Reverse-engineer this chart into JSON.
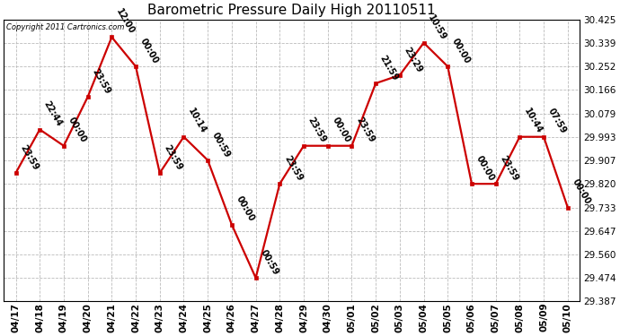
{
  "title": "Barometric Pressure Daily High 20110511",
  "copyright": "Copyright 2011 Cartronics.com",
  "x_labels": [
    "04/17",
    "04/18",
    "04/19",
    "04/20",
    "04/21",
    "04/22",
    "04/23",
    "04/24",
    "04/25",
    "04/26",
    "04/27",
    "04/28",
    "04/29",
    "04/30",
    "05/01",
    "05/02",
    "05/03",
    "05/04",
    "05/05",
    "05/06",
    "05/07",
    "05/08",
    "05/09",
    "05/10"
  ],
  "y_values": [
    29.86,
    30.02,
    29.96,
    30.14,
    30.36,
    30.252,
    29.86,
    29.993,
    29.907,
    29.67,
    29.474,
    29.82,
    29.96,
    29.96,
    29.96,
    30.19,
    30.22,
    30.339,
    30.252,
    29.82,
    29.82,
    29.993,
    29.993,
    29.733
  ],
  "annotations": [
    "23:59",
    "22:44",
    "00:00",
    "23:59",
    "12:00",
    "00:00",
    "23:59",
    "10:14",
    "00:59",
    "00:00",
    "00:59",
    "23:59",
    "23:59",
    "00:00",
    "23:59",
    "21:59",
    "23:29",
    "10:59",
    "00:00",
    "00:00",
    "23:59",
    "10:44",
    "07:59",
    "00:00"
  ],
  "ylim_min": 29.387,
  "ylim_max": 30.425,
  "yticks": [
    29.387,
    29.474,
    29.56,
    29.647,
    29.733,
    29.82,
    29.907,
    29.993,
    30.079,
    30.166,
    30.252,
    30.339,
    30.425
  ],
  "line_color": "#cc0000",
  "marker_color": "#cc0000",
  "bg_color": "#ffffff",
  "grid_color": "#bbbbbb",
  "title_fontsize": 11,
  "annotation_fontsize": 7,
  "tick_fontsize": 7.5
}
